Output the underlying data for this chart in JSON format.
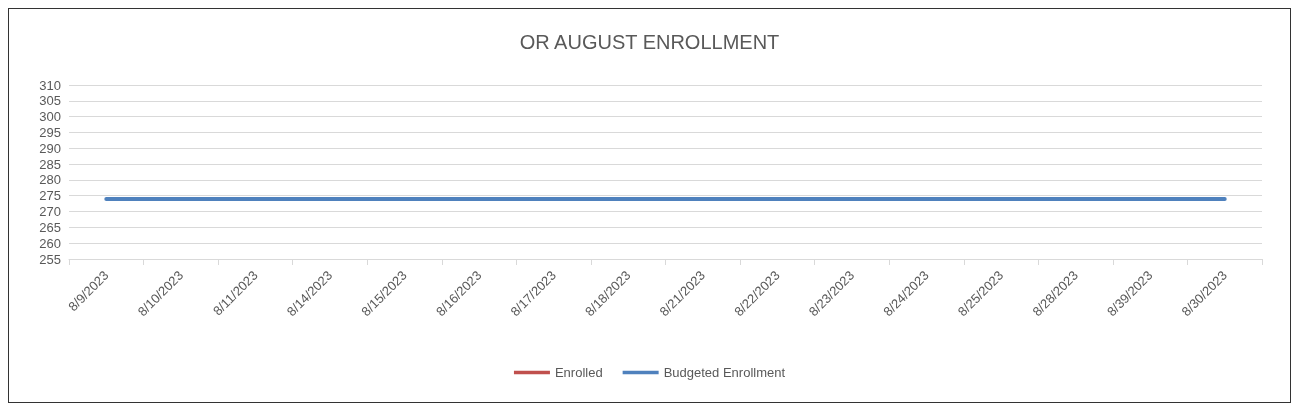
{
  "chart_data": {
    "type": "line",
    "title": "OR AUGUST ENROLLMENT",
    "categories": [
      "8/9/2023",
      "8/10/2023",
      "8/11/2023",
      "8/14/2023",
      "8/15/2023",
      "8/16/2023",
      "8/17/2023",
      "8/18/2023",
      "8/21/2023",
      "8/22/2023",
      "8/23/2023",
      "8/24/2023",
      "8/25/2023",
      "8/28/2023",
      "8/39/2023",
      "8/30/2023"
    ],
    "series": [
      {
        "name": "Enrolled",
        "color": "#c0504d",
        "values": [
          null,
          null,
          null,
          null,
          null,
          null,
          null,
          null,
          null,
          null,
          null,
          null,
          null,
          null,
          null,
          null
        ]
      },
      {
        "name": "Budgeted Enrollment",
        "color": "#4f81bd",
        "values": [
          274,
          274,
          274,
          274,
          274,
          274,
          274,
          274,
          274,
          274,
          274,
          274,
          274,
          274,
          274,
          274
        ]
      }
    ],
    "ylim": [
      255,
      310
    ],
    "yticks": [
      255,
      260,
      265,
      270,
      275,
      280,
      285,
      290,
      295,
      300,
      305,
      310
    ],
    "grid": "y",
    "legend": "bottom",
    "marker": "none",
    "line_style": "solid"
  }
}
